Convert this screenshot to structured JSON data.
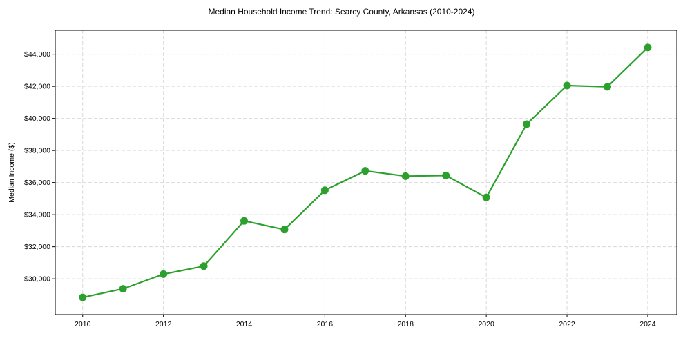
{
  "chart_data": {
    "type": "line",
    "title": "Median Household Income Trend: Searcy County, Arkansas (2010-2024)",
    "xlabel": "",
    "ylabel": "Median Income ($)",
    "x": [
      2010,
      2011,
      2012,
      2013,
      2014,
      2015,
      2016,
      2017,
      2018,
      2019,
      2020,
      2021,
      2022,
      2023,
      2024
    ],
    "series": [
      {
        "name": "Median Household Income",
        "values": [
          28840,
          29380,
          30290,
          30790,
          33610,
          33070,
          35520,
          36730,
          36400,
          36440,
          35070,
          39640,
          42050,
          41970,
          44420
        ],
        "color": "#2ca02c",
        "marker": "circle",
        "line_style": "solid"
      }
    ],
    "x_ticks": [
      2010,
      2012,
      2014,
      2016,
      2018,
      2020,
      2022,
      2024
    ],
    "x_tick_labels": [
      "2010",
      "2012",
      "2014",
      "2016",
      "2018",
      "2020",
      "2022",
      "2024"
    ],
    "y_ticks": [
      30000,
      32000,
      34000,
      36000,
      38000,
      40000,
      42000,
      44000
    ],
    "y_tick_labels": [
      "$30,000",
      "$32,000",
      "$34,000",
      "$36,000",
      "$38,000",
      "$40,000",
      "$42,000",
      "$44,000"
    ],
    "xlim": [
      2009.32,
      2024.72
    ],
    "ylim": [
      27770,
      45490
    ],
    "grid": true,
    "grid_style": "dashed",
    "legend": null
  },
  "colors": {
    "line": "#2ca02c",
    "grid": "#d9d9d9",
    "axis": "#000000",
    "background": "#ffffff"
  }
}
